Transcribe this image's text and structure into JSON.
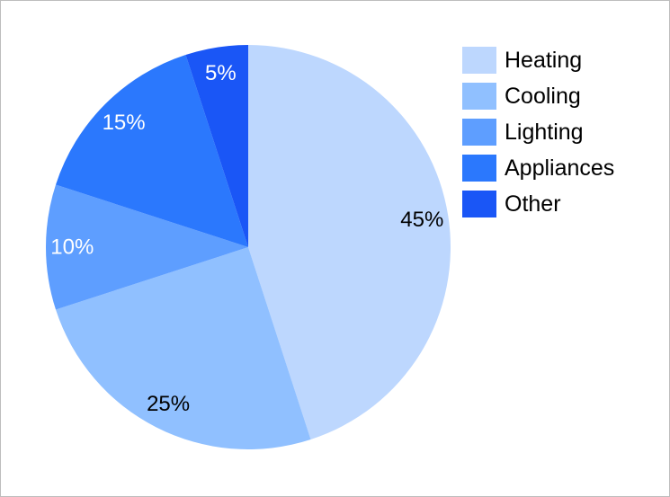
{
  "chart_data": {
    "type": "pie",
    "categories": [
      "Heating",
      "Cooling",
      "Lighting",
      "Appliances",
      "Other"
    ],
    "values": [
      45,
      25,
      10,
      15,
      5
    ],
    "data_labels": [
      "45%",
      "25%",
      "10%",
      "15%",
      "5%"
    ],
    "colors": [
      "#bdd7fe",
      "#90c0ff",
      "#5e9eff",
      "#2b78fd",
      "#1a56f6"
    ],
    "label_colors": [
      "#000000",
      "#000000",
      "#ffffff",
      "#ffffff",
      "#ffffff"
    ],
    "start_angle_deg": 0,
    "direction": "clockwise",
    "legend_position": "right"
  }
}
